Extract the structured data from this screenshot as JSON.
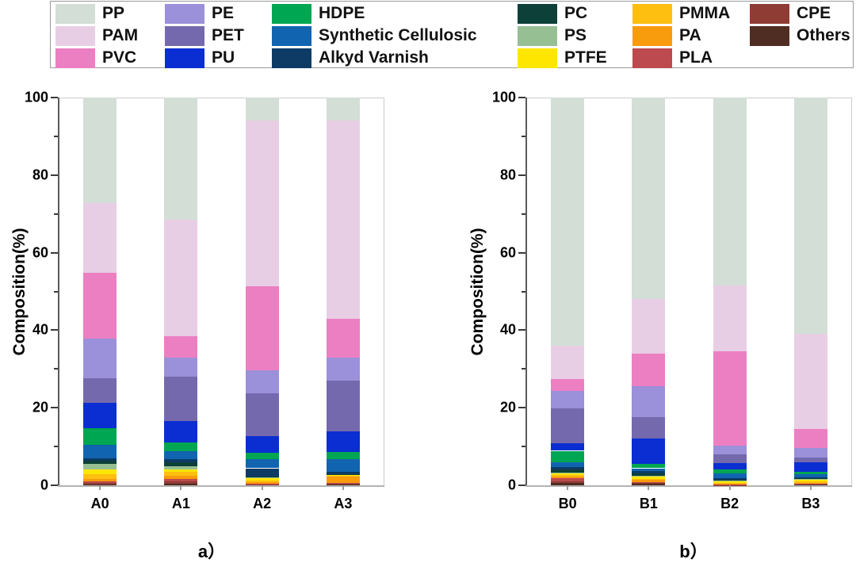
{
  "figure_type": "stacked-bar-composition-figure",
  "polymers": [
    {
      "name": "PP",
      "color": "#d3ded6"
    },
    {
      "name": "PAM",
      "color": "#e8cee4"
    },
    {
      "name": "PVC",
      "color": "#ec7fc2"
    },
    {
      "name": "PE",
      "color": "#9b90da"
    },
    {
      "name": "PET",
      "color": "#7569ae"
    },
    {
      "name": "PU",
      "color": "#0a2ed1"
    },
    {
      "name": "HDPE",
      "color": "#00a651"
    },
    {
      "name": "Synthetic Cellulosic",
      "color": "#1165b0"
    },
    {
      "name": "Alkyd Varnish",
      "color": "#0d3b66"
    },
    {
      "name": "PC",
      "color": "#0d4038"
    },
    {
      "name": "PS",
      "color": "#97bf94"
    },
    {
      "name": "PTFE",
      "color": "#fee600"
    },
    {
      "name": "PMMA",
      "color": "#febf10"
    },
    {
      "name": "PA",
      "color": "#f89b0c"
    },
    {
      "name": "PLA",
      "color": "#bc4a4e"
    },
    {
      "name": "CPE",
      "color": "#8f3c34"
    },
    {
      "name": "Others",
      "color": "#502d22"
    }
  ],
  "legend": {
    "position": "top",
    "items": [
      "PP",
      "PAM",
      "PVC",
      "PE",
      "PET",
      "PU",
      "HDPE",
      "Synthetic Cellulosic",
      "Alkyd Varnish",
      "PC",
      "PS",
      "PTFE",
      "PMMA",
      "PA",
      "PLA",
      "CPE",
      "Others"
    ]
  },
  "chart_data": [
    {
      "type": "bar",
      "stacked": true,
      "caption": "a）",
      "ylabel": "Composition(%)",
      "ylim": [
        0,
        100
      ],
      "yticks": [
        0,
        20,
        40,
        60,
        80,
        100
      ],
      "yticks_minor": [
        10,
        30,
        50,
        70,
        90
      ],
      "grid": false,
      "categories": [
        "A0",
        "A1",
        "A2",
        "A3"
      ],
      "series": [
        {
          "name": "PP",
          "values": [
            27.2,
            31.5,
            6.0,
            6.0
          ]
        },
        {
          "name": "PAM",
          "values": [
            18.0,
            30.0,
            42.7,
            51.0
          ]
        },
        {
          "name": "PVC",
          "values": [
            17.0,
            5.5,
            21.6,
            10.0
          ]
        },
        {
          "name": "PE",
          "values": [
            10.1,
            5.0,
            5.9,
            6.0
          ]
        },
        {
          "name": "PET",
          "values": [
            6.5,
            11.5,
            11.1,
            13.0
          ]
        },
        {
          "name": "PU",
          "values": [
            6.5,
            5.4,
            4.4,
            5.4
          ]
        },
        {
          "name": "HDPE",
          "values": [
            4.2,
            2.3,
            1.5,
            1.8
          ]
        },
        {
          "name": "Synthetic Cellulosic",
          "values": [
            3.5,
            2.0,
            2.4,
            3.4
          ]
        },
        {
          "name": "Alkyd Varnish",
          "values": [
            0.6,
            0.8,
            2.2,
            0.5
          ]
        },
        {
          "name": "PC",
          "values": [
            0.9,
            1.0,
            0.1,
            0.1
          ]
        },
        {
          "name": "PS",
          "values": [
            1.4,
            1.0,
            0.1,
            0.1
          ]
        },
        {
          "name": "PTFE",
          "values": [
            1.2,
            0.5,
            0.7,
            0.2
          ]
        },
        {
          "name": "PMMA",
          "values": [
            1.2,
            1.0,
            0.5,
            0.3
          ]
        },
        {
          "name": "PA",
          "values": [
            0.7,
            0.9,
            0.35,
            1.5
          ]
        },
        {
          "name": "PLA",
          "values": [
            0.4,
            0.6,
            0.15,
            0.2
          ]
        },
        {
          "name": "CPE",
          "values": [
            0.3,
            0.5,
            0.15,
            0.25
          ]
        },
        {
          "name": "Others",
          "values": [
            0.3,
            0.5,
            0.15,
            0.25
          ]
        }
      ]
    },
    {
      "type": "bar",
      "stacked": true,
      "caption": "b）",
      "ylabel": "Composition(%)",
      "ylim": [
        0,
        100
      ],
      "yticks": [
        0,
        20,
        40,
        60,
        80,
        100
      ],
      "yticks_minor": [
        10,
        30,
        50,
        70,
        90
      ],
      "grid": false,
      "categories": [
        "B0",
        "B1",
        "B2",
        "B3"
      ],
      "series": [
        {
          "name": "PP",
          "values": [
            64.1,
            52.0,
            48.4,
            60.9
          ]
        },
        {
          "name": "PAM",
          "values": [
            8.5,
            14.0,
            17.0,
            24.5
          ]
        },
        {
          "name": "PVC",
          "values": [
            3.0,
            8.5,
            24.4,
            5.0
          ]
        },
        {
          "name": "PE",
          "values": [
            4.5,
            8.0,
            2.3,
            2.4
          ]
        },
        {
          "name": "PET",
          "values": [
            9.0,
            5.5,
            2.2,
            1.3
          ]
        },
        {
          "name": "PU",
          "values": [
            2.0,
            6.5,
            1.7,
            2.4
          ]
        },
        {
          "name": "HDPE",
          "values": [
            2.9,
            1.1,
            0.9,
            0.6
          ]
        },
        {
          "name": "Synthetic Cellulosic",
          "values": [
            1.2,
            0.8,
            1.3,
            0.8
          ]
        },
        {
          "name": "Alkyd Varnish",
          "values": [
            0.8,
            0.6,
            0.4,
            0.3
          ]
        },
        {
          "name": "PC",
          "values": [
            0.7,
            0.6,
            0.2,
            0.2
          ]
        },
        {
          "name": "PS",
          "values": [
            0.2,
            0.2,
            0.1,
            0.1
          ]
        },
        {
          "name": "PTFE",
          "values": [
            0.5,
            0.5,
            0.5,
            0.55
          ]
        },
        {
          "name": "PMMA",
          "values": [
            0.4,
            0.3,
            0.25,
            0.25
          ]
        },
        {
          "name": "PA",
          "values": [
            0.3,
            0.6,
            0.15,
            0.2
          ]
        },
        {
          "name": "PLA",
          "values": [
            0.8,
            0.2,
            0.1,
            0.1
          ]
        },
        {
          "name": "CPE",
          "values": [
            0.4,
            0.2,
            0.05,
            0.1
          ]
        },
        {
          "name": "Others",
          "values": [
            0.7,
            0.4,
            0.05,
            0.3
          ]
        }
      ]
    }
  ]
}
